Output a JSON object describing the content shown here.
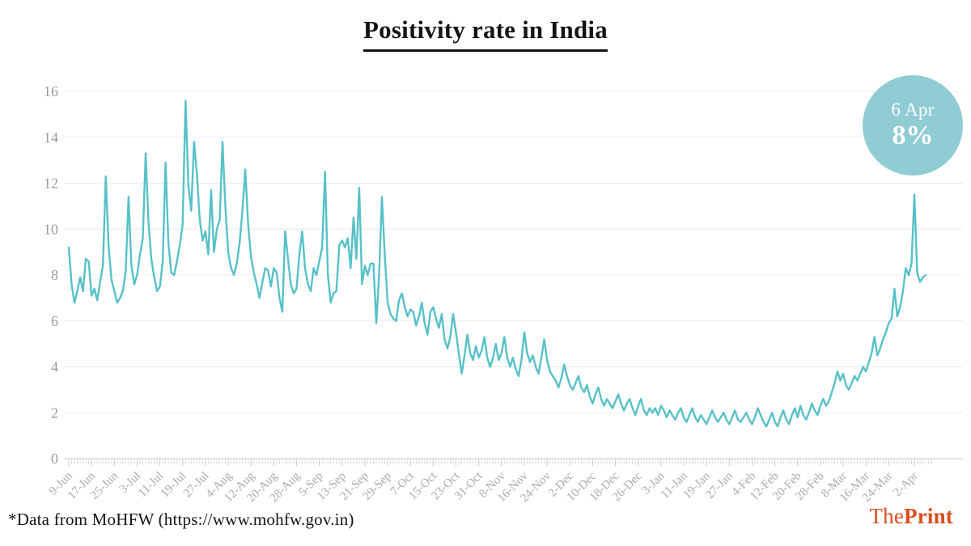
{
  "title": "Positivity rate in India",
  "badge": {
    "date": "6 Apr",
    "value": "8%"
  },
  "footer": {
    "source_note": "*Data from MoHFW (https://www.mohfw.gov.in)",
    "brand_the": "The",
    "brand_print": "Print"
  },
  "colors": {
    "line": "#57c1c8",
    "badge_bg": "#8fccd3",
    "brand": "#d8501f",
    "grid": "#ececec",
    "axis": "#c9c9c9",
    "minor_tick": "#dcdcdc",
    "y_label": "#9a9a9a",
    "x_label": "#ababab"
  },
  "chart_data": {
    "type": "line",
    "title": "Positivity rate in India",
    "xlabel": "",
    "ylabel": "",
    "ylim": [
      0,
      16
    ],
    "y_ticks": [
      0,
      2,
      4,
      6,
      8,
      10,
      12,
      14,
      16
    ],
    "grid": "horizontal",
    "legend": "none",
    "x_tick_labels": [
      "9-Jun",
      "17-Jun",
      "25-Jun",
      "3-Jul",
      "11-Jul",
      "19-Jul",
      "27-Jul",
      "4-Aug",
      "12-Aug",
      "20-Aug",
      "28-Aug",
      "5-Sep",
      "13-Sep",
      "21-Sep",
      "29-Sep",
      "7-Oct",
      "15-Oct",
      "23-Oct",
      "31-Oct",
      "8-Nov",
      "16-Nov",
      "24-Nov",
      "2-Dec",
      "10-Dec",
      "18-Dec",
      "26-Dec",
      "3-Jan",
      "11-Jan",
      "19-Jan",
      "27-Jan",
      "4-Feb",
      "12-Feb",
      "20-Feb",
      "28-Feb",
      "8-Mar",
      "16-Mar",
      "24-Mar",
      "2-Apr"
    ],
    "x_tick_day_index": [
      0,
      8,
      16,
      24,
      32,
      40,
      48,
      56,
      64,
      72,
      80,
      88,
      96,
      104,
      112,
      120,
      128,
      136,
      144,
      152,
      160,
      168,
      176,
      184,
      192,
      200,
      208,
      216,
      224,
      232,
      240,
      248,
      256,
      264,
      272,
      280,
      288,
      297
    ],
    "annotation": {
      "date": "6 Apr",
      "value_pct": 8
    },
    "series": [
      {
        "name": "Positivity rate (%)",
        "frequency": "daily",
        "start_date": "9-Jun",
        "end_date": "6-Apr",
        "values": [
          9.2,
          7.6,
          6.8,
          7.3,
          7.9,
          7.3,
          8.7,
          8.6,
          7.1,
          7.4,
          6.9,
          7.7,
          8.4,
          12.3,
          9.2,
          7.8,
          7.3,
          6.8,
          7.0,
          7.3,
          8.2,
          11.4,
          8.4,
          7.6,
          8.0,
          8.9,
          9.6,
          13.3,
          10.3,
          8.7,
          7.9,
          7.3,
          7.5,
          8.6,
          12.9,
          9.4,
          8.1,
          8.0,
          8.6,
          9.3,
          10.2,
          15.6,
          11.9,
          10.8,
          13.8,
          12.4,
          10.4,
          9.5,
          9.9,
          8.9,
          11.7,
          9.0,
          10.0,
          10.4,
          13.8,
          11.0,
          9.0,
          8.3,
          8.0,
          8.5,
          9.4,
          10.8,
          12.6,
          10.2,
          8.8,
          8.1,
          7.6,
          7.0,
          7.7,
          8.3,
          8.2,
          7.5,
          8.3,
          8.1,
          7.0,
          6.4,
          9.9,
          8.7,
          7.6,
          7.2,
          7.4,
          8.9,
          9.9,
          8.3,
          7.6,
          7.3,
          8.3,
          8.0,
          8.6,
          9.2,
          12.5,
          8.0,
          6.8,
          7.2,
          7.3,
          9.3,
          9.5,
          9.2,
          9.6,
          8.3,
          10.5,
          8.7,
          11.8,
          7.6,
          8.4,
          8.0,
          8.5,
          8.5,
          5.9,
          8.0,
          11.4,
          8.8,
          6.8,
          6.3,
          6.1,
          6.0,
          6.9,
          7.2,
          6.6,
          6.2,
          6.5,
          6.4,
          5.8,
          6.2,
          6.8,
          5.9,
          5.4,
          6.4,
          6.6,
          6.1,
          5.7,
          6.3,
          5.2,
          4.8,
          5.3,
          6.3,
          5.5,
          4.6,
          3.7,
          4.5,
          5.4,
          4.6,
          4.3,
          4.9,
          4.4,
          4.7,
          5.3,
          4.4,
          4.0,
          4.4,
          5.0,
          4.3,
          4.6,
          5.3,
          4.4,
          4.0,
          4.4,
          3.9,
          3.6,
          4.3,
          5.5,
          4.6,
          4.2,
          4.5,
          4.0,
          3.7,
          4.4,
          5.2,
          4.3,
          3.8,
          3.6,
          3.4,
          3.1,
          3.5,
          4.1,
          3.6,
          3.2,
          3.0,
          3.3,
          3.6,
          3.1,
          2.9,
          3.2,
          2.7,
          2.4,
          2.8,
          3.1,
          2.6,
          2.3,
          2.6,
          2.4,
          2.2,
          2.5,
          2.8,
          2.4,
          2.1,
          2.4,
          2.6,
          2.2,
          1.9,
          2.3,
          2.6,
          2.1,
          1.9,
          2.2,
          2.0,
          2.2,
          1.9,
          2.3,
          2.1,
          1.8,
          2.1,
          1.9,
          1.7,
          2.0,
          2.2,
          1.8,
          1.6,
          1.9,
          2.2,
          1.8,
          1.6,
          1.9,
          1.7,
          1.5,
          1.8,
          2.1,
          1.8,
          1.6,
          1.8,
          2.0,
          1.7,
          1.5,
          1.8,
          2.1,
          1.7,
          1.6,
          1.8,
          2.0,
          1.7,
          1.5,
          1.8,
          2.2,
          1.9,
          1.6,
          1.4,
          1.7,
          2.0,
          1.6,
          1.4,
          1.8,
          2.1,
          1.7,
          1.5,
          1.9,
          2.2,
          1.8,
          2.3,
          1.9,
          1.7,
          2.0,
          2.4,
          2.1,
          1.9,
          2.3,
          2.6,
          2.3,
          2.5,
          2.9,
          3.3,
          3.8,
          3.4,
          3.7,
          3.2,
          3.0,
          3.3,
          3.6,
          3.4,
          3.7,
          4.0,
          3.8,
          4.2,
          4.6,
          5.3,
          4.5,
          4.8,
          5.2,
          5.5,
          5.9,
          6.1,
          7.4,
          6.2,
          6.6,
          7.3,
          8.3,
          8.0,
          8.5,
          11.5,
          8.1,
          7.7,
          7.9,
          8.0
        ]
      }
    ]
  }
}
